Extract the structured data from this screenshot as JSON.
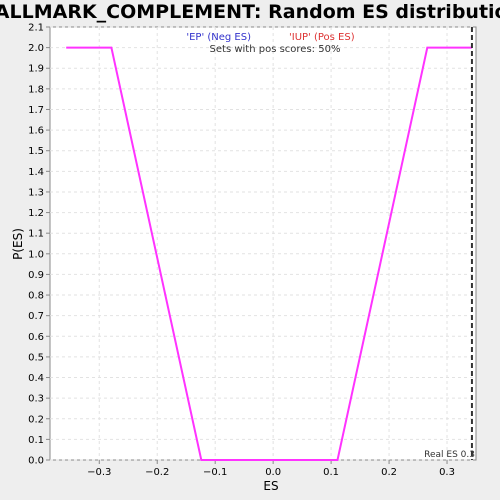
{
  "chart_data": {
    "type": "line",
    "title": "HALLMARK_COMPLEMENT: Random ES distribution",
    "xlabel": "ES",
    "ylabel": "P(ES)",
    "legend": {
      "neg_label": "'EP' (Neg ES)",
      "pos_label": "'IUP' (Pos ES)",
      "subtitle": "Sets with pos scores: 50%",
      "neg_color": "#3333cc",
      "pos_color": "#dd3333"
    },
    "xlim": [
      -0.385,
      0.35
    ],
    "ylim": [
      0,
      2.1
    ],
    "xticks": [
      -0.3,
      -0.2,
      -0.1,
      0.0,
      0.1,
      0.2,
      0.3
    ],
    "xtick_labels": [
      "−0.3",
      "−0.2",
      "−0.1",
      "0.0",
      "0.1",
      "0.2",
      "0.3"
    ],
    "yticks": [
      0.0,
      0.1,
      0.2,
      0.3,
      0.4,
      0.5,
      0.6,
      0.7,
      0.8,
      0.9,
      1.0,
      1.1,
      1.2,
      1.3,
      1.4,
      1.5,
      1.6,
      1.7,
      1.8,
      1.9,
      2.0,
      2.1
    ],
    "ytick_labels": [
      "0.0",
      "0.1",
      "0.2",
      "0.3",
      "0.4",
      "0.5",
      "0.6",
      "0.7",
      "0.8",
      "0.9",
      "1.0",
      "1.1",
      "1.2",
      "1.3",
      "1.4",
      "1.5",
      "1.6",
      "1.7",
      "1.8",
      "1.9",
      "2.0",
      "2.1"
    ],
    "grid": true,
    "series": [
      {
        "color": "#ff33ff",
        "x": [
          -0.357,
          -0.279,
          -0.124,
          0.111,
          0.266,
          0.343
        ],
        "y": [
          2.0,
          2.0,
          0.0,
          0.0,
          2.0,
          2.0
        ]
      }
    ],
    "real_es": {
      "value": 0.343,
      "label": "Real ES 0.3",
      "color": "#333333"
    }
  }
}
